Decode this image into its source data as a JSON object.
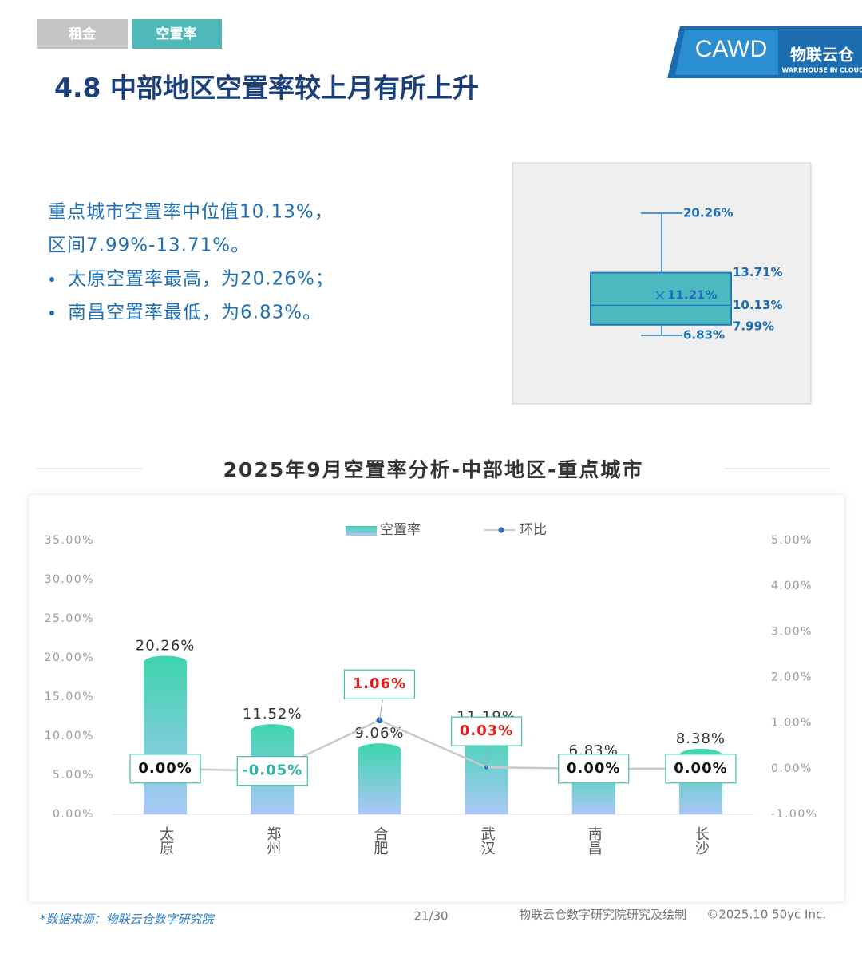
{
  "tabs": [
    "租金",
    "空置率"
  ],
  "logo": {
    "name": "CAWD",
    "brand": "物联云仓",
    "brand_en": "WAREHOUSE IN CLOUD"
  },
  "title": "4.8 中部地区空置率较上月有所上升",
  "summary": [
    "重点城市空置率中位值10.13%，",
    "区间7.99%-13.71%。"
  ],
  "bullets": [
    "太原空置率最高，为20.26%；",
    "南昌空置率最低，为6.83%。"
  ],
  "chart_data": [
    {
      "type": "box",
      "min": 6.83,
      "q1": 7.99,
      "median": 10.13,
      "q3": 13.71,
      "max": 20.26,
      "mean": 11.21,
      "value_labels": {
        "min": "6.83%",
        "q1": "7.99%",
        "median": "10.13%",
        "q3": "13.71%",
        "max": "20.26%",
        "mean": "11.21%"
      },
      "color": "#4cb9c0",
      "edge_color": "#1b7cc0"
    },
    {
      "type": "combo",
      "title": "2025年9月空置率分析-中部地区-重点城市",
      "categories": [
        "太原",
        "郑州",
        "合肥",
        "武汉",
        "南昌",
        "长沙"
      ],
      "series": [
        {
          "name": "空置率",
          "type": "bar",
          "color": "#3dd5ad",
          "color_end": "#abc7f7",
          "values": [
            20.26,
            11.52,
            9.06,
            11.19,
            6.83,
            8.38
          ],
          "value_labels": [
            "20.26%",
            "11.52%",
            "9.06%",
            "11.19%",
            "6.83%",
            "8.38%"
          ]
        },
        {
          "name": "环比",
          "type": "line",
          "axis": "y2",
          "color": "#c9c9c9",
          "marker_color": "#2e6cb5",
          "values": [
            0.0,
            -0.05,
            1.06,
            0.03,
            0.0,
            0.0
          ],
          "value_labels": [
            "0.00%",
            "-0.05%",
            "1.06%",
            "0.03%",
            "0.00%",
            "0.00%"
          ]
        }
      ],
      "ylim": [
        0,
        35
      ],
      "yticks": [
        {
          "value": 0,
          "label": "0.00%"
        },
        {
          "value": 5,
          "label": "5.00%"
        },
        {
          "value": 10,
          "label": "10.00%"
        },
        {
          "value": 15,
          "label": "15.00%"
        },
        {
          "value": 20,
          "label": "20.00%"
        },
        {
          "value": 25,
          "label": "25.00%"
        },
        {
          "value": 30,
          "label": "30.00%"
        },
        {
          "value": 35,
          "label": "35.00%"
        }
      ],
      "y2lim": [
        -1,
        5
      ],
      "y2ticks": [
        {
          "value": -1,
          "label": "-1.00%"
        },
        {
          "value": 0,
          "label": "0.00%"
        },
        {
          "value": 1,
          "label": "1.00%"
        },
        {
          "value": 2,
          "label": "2.00%"
        },
        {
          "value": 3,
          "label": "3.00%"
        },
        {
          "value": 4,
          "label": "4.00%"
        },
        {
          "value": 5,
          "label": "5.00%"
        }
      ],
      "grid": false
    }
  ],
  "footer": {
    "source": "*数据来源：物联云仓数字研究院",
    "page": "21/30",
    "credit": "物联云仓数字研究院研究及绘制",
    "copyright": "©2025.10 50yc Inc."
  }
}
